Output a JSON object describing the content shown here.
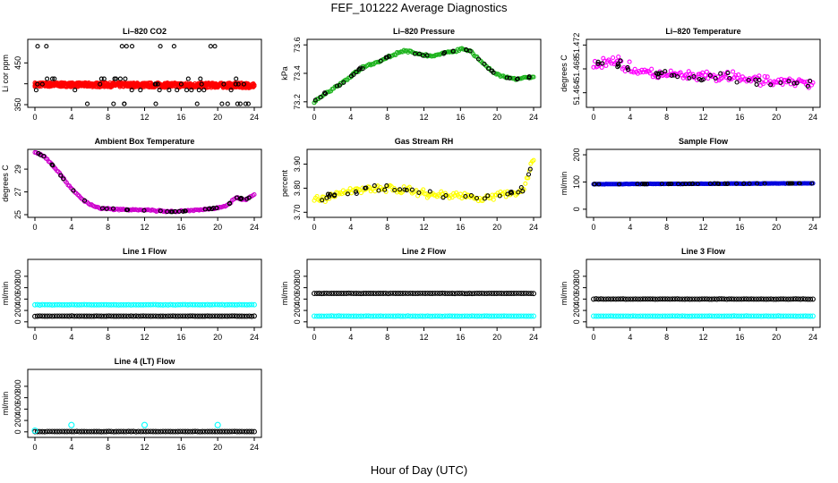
{
  "page": {
    "title": "FEF_101222  Average Diagnostics",
    "xlabel": "Hour of Day (UTC)"
  },
  "colors": {
    "co2": "#ff0000",
    "pressure": "#1db31d",
    "li820_temp": "#ff00ff",
    "box_temp": "#cc00cc",
    "rh": "#ffff00",
    "sample_flow": "#0000dd",
    "line_flow": "#00ffff",
    "ink": "#000000"
  },
  "chart_data": [
    {
      "id": "li820-co2",
      "type": "scatter",
      "title": "Li–820 CO2",
      "ylabel": "Li cor ppm",
      "xlim": [
        0,
        24
      ],
      "xticks": [
        0,
        4,
        8,
        12,
        16,
        20,
        24
      ],
      "ylim": [
        350,
        500
      ],
      "yticks": [
        350,
        450
      ],
      "ytick_labels": [
        "350",
        "450"
      ],
      "ytick_minor": [
        400
      ],
      "series": [
        {
          "name": "CO2 band",
          "color": "red",
          "x": [
            0,
            24
          ],
          "low": [
            393,
            390
          ],
          "high": [
            403,
            402
          ]
        },
        {
          "name": "CO2 scatter",
          "color": "black",
          "levels": [
            352,
            385,
            399,
            412,
            490
          ]
        }
      ]
    },
    {
      "id": "li820-pressure",
      "type": "scatter",
      "title": "Li–820 Pressure",
      "ylabel": "kPa",
      "xlim": [
        0,
        24
      ],
      "xticks": [
        0,
        4,
        8,
        12,
        16,
        20,
        24
      ],
      "ylim": [
        73.18,
        73.62
      ],
      "yticks": [
        73.2,
        73.4,
        73.6
      ],
      "ytick_labels": [
        "73.2",
        "73.4",
        "73.6"
      ],
      "series": [
        {
          "name": "Pressure",
          "color": "green",
          "x": [
            0,
            1,
            2,
            3,
            4,
            5,
            6,
            7,
            8,
            9,
            10,
            11,
            12,
            13,
            14,
            15,
            16,
            17,
            18,
            19,
            20,
            21,
            22,
            23,
            24
          ],
          "y": [
            73.2,
            73.25,
            73.29,
            73.33,
            73.38,
            73.43,
            73.46,
            73.48,
            73.51,
            73.54,
            73.56,
            73.54,
            73.53,
            73.52,
            73.54,
            73.55,
            73.57,
            73.56,
            73.5,
            73.44,
            73.39,
            73.37,
            73.36,
            73.37,
            73.37
          ]
        }
      ]
    },
    {
      "id": "li820-temperature",
      "type": "scatter",
      "title": "Li–820 Temperature",
      "ylabel": "degrees C",
      "xlim": [
        0,
        24
      ],
      "xticks": [
        0,
        4,
        8,
        12,
        16,
        20,
        24
      ],
      "ylim": [
        51.462,
        51.4725
      ],
      "yticks": [
        51.464,
        51.468,
        51.472
      ],
      "ytick_labels": [
        "51.464",
        "51.468",
        "51.472"
      ],
      "series": [
        {
          "name": "Temperature",
          "color": "magenta",
          "x": [
            0,
            2,
            4,
            6,
            8,
            10,
            12,
            14,
            16,
            18,
            20,
            22,
            24
          ],
          "y": [
            51.4688,
            51.4695,
            51.468,
            51.4672,
            51.467,
            51.4668,
            51.4666,
            51.4666,
            51.4664,
            51.4661,
            51.4659,
            51.4656,
            51.4656
          ]
        }
      ]
    },
    {
      "id": "ambient-box-temperature",
      "type": "scatter",
      "title": "Ambient Box Temperature",
      "ylabel": "degrees C",
      "xlim": [
        0,
        24
      ],
      "xticks": [
        0,
        4,
        8,
        12,
        16,
        20,
        24
      ],
      "ylim": [
        25,
        30.5
      ],
      "yticks": [
        25,
        27,
        29
      ],
      "ytick_labels": [
        "25",
        "27",
        "29"
      ],
      "series": [
        {
          "name": "Box temperature",
          "color": "purple",
          "x": [
            0,
            1,
            2,
            3,
            4,
            5,
            6,
            7,
            8,
            10,
            12,
            14,
            15,
            16,
            18,
            20,
            21,
            22,
            23,
            24
          ],
          "y": [
            30.5,
            30.1,
            29.3,
            28.3,
            27.3,
            26.5,
            25.9,
            25.6,
            25.5,
            25.45,
            25.4,
            25.3,
            25.25,
            25.3,
            25.4,
            25.6,
            25.8,
            26.5,
            26.3,
            26.8
          ]
        }
      ]
    },
    {
      "id": "gas-stream-rh",
      "type": "scatter",
      "title": "Gas Stream RH",
      "ylabel": "percent",
      "xlim": [
        0,
        24
      ],
      "xticks": [
        0,
        4,
        8,
        12,
        16,
        20,
        24
      ],
      "ylim": [
        3.69,
        3.95
      ],
      "yticks": [
        3.7,
        3.8,
        3.9
      ],
      "ytick_labels": [
        "3.70",
        "3.80",
        "3.90"
      ],
      "series": [
        {
          "name": "RH",
          "color": "yellow",
          "x": [
            0,
            2,
            4,
            6,
            8,
            10,
            12,
            14,
            16,
            18,
            20,
            22,
            23,
            24
          ],
          "y": [
            3.75,
            3.77,
            3.79,
            3.8,
            3.8,
            3.79,
            3.78,
            3.77,
            3.77,
            3.76,
            3.77,
            3.78,
            3.8,
            3.93
          ]
        }
      ]
    },
    {
      "id": "sample-flow",
      "type": "scatter",
      "title": "Sample Flow",
      "ylabel": "ml/min",
      "xlim": [
        0,
        24
      ],
      "xticks": [
        0,
        4,
        8,
        12,
        16,
        20,
        24
      ],
      "ylim": [
        -20,
        210
      ],
      "yticks": [
        0,
        100,
        200
      ],
      "ytick_labels": [
        "0",
        "100",
        "200"
      ],
      "series": [
        {
          "name": "Sample flow",
          "color": "blue",
          "x": [
            0,
            24
          ],
          "y": [
            92,
            95
          ]
        }
      ]
    },
    {
      "id": "line-1-flow",
      "type": "scatter",
      "title": "Line 1 Flow",
      "ylabel": "ml/min",
      "xlim": [
        0,
        24
      ],
      "xticks": [
        0,
        4,
        8,
        12,
        16,
        20,
        24
      ],
      "ylim": [
        -50,
        1050
      ],
      "yticks": [
        0,
        200,
        400,
        600,
        800
      ],
      "ytick_labels": [
        "0",
        "200",
        "400",
        "600",
        "800"
      ],
      "series": [
        {
          "name": "Line flow (cyan)",
          "color": "cyan",
          "x": [
            0,
            24
          ],
          "y": [
            300,
            300
          ]
        },
        {
          "name": "Line flow (black)",
          "color": "black",
          "x": [
            0,
            24
          ],
          "y": [
            100,
            100
          ]
        }
      ]
    },
    {
      "id": "line-2-flow",
      "type": "scatter",
      "title": "Line 2 Flow",
      "ylabel": "ml/min",
      "xlim": [
        0,
        24
      ],
      "xticks": [
        0,
        4,
        8,
        12,
        16,
        20,
        24
      ],
      "ylim": [
        -50,
        1050
      ],
      "yticks": [
        0,
        200,
        400,
        600,
        800
      ],
      "ytick_labels": [
        "0",
        "200",
        "400",
        "600",
        "800"
      ],
      "series": [
        {
          "name": "Line flow (cyan)",
          "color": "cyan",
          "x": [
            0,
            24
          ],
          "y": [
            100,
            100
          ]
        },
        {
          "name": "Line flow (black)",
          "color": "black",
          "x": [
            0,
            24
          ],
          "y": [
            500,
            500
          ]
        }
      ]
    },
    {
      "id": "line-3-flow",
      "type": "scatter",
      "title": "Line 3 Flow",
      "ylabel": "ml/min",
      "xlim": [
        0,
        24
      ],
      "xticks": [
        0,
        4,
        8,
        12,
        16,
        20,
        24
      ],
      "ylim": [
        -50,
        1050
      ],
      "yticks": [
        0,
        200,
        400,
        600,
        800
      ],
      "ytick_labels": [
        "0",
        "200",
        "400",
        "600",
        "800"
      ],
      "series": [
        {
          "name": "Line flow (cyan)",
          "color": "cyan",
          "x": [
            0,
            24
          ],
          "y": [
            100,
            100
          ]
        },
        {
          "name": "Line flow (black)",
          "color": "black",
          "x": [
            0,
            24
          ],
          "y": [
            400,
            400
          ]
        }
      ]
    },
    {
      "id": "line-4-lt-flow",
      "type": "scatter",
      "title": "Line 4 (LT) Flow",
      "ylabel": "ml/min",
      "xlim": [
        0,
        24
      ],
      "xticks": [
        0,
        4,
        8,
        12,
        16,
        20,
        24
      ],
      "ylim": [
        -50,
        1050
      ],
      "yticks": [
        0,
        200,
        400,
        600,
        800
      ],
      "ytick_labels": [
        "0",
        "200",
        "400",
        "600",
        "800"
      ],
      "series": [
        {
          "name": "Line flow (black)",
          "color": "black",
          "x": [
            0,
            24
          ],
          "y": [
            5,
            5
          ]
        },
        {
          "name": "Line flow spikes (cyan)",
          "color": "cyan",
          "x": [
            0,
            4,
            12,
            20
          ],
          "y": [
            20,
            120,
            120,
            120
          ]
        }
      ]
    }
  ]
}
